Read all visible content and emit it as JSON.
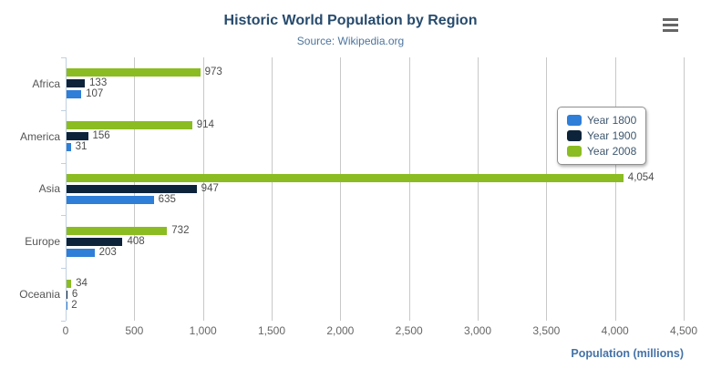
{
  "chart_data": {
    "type": "bar",
    "title": "Historic World Population by Region",
    "subtitle": "Source: Wikipedia.org",
    "categories": [
      "Africa",
      "America",
      "Asia",
      "Europe",
      "Oceania"
    ],
    "series": [
      {
        "name": "Year 1800",
        "color": "#2f7ed8",
        "values": [
          107,
          31,
          635,
          203,
          2
        ]
      },
      {
        "name": "Year 1900",
        "color": "#0d233a",
        "values": [
          133,
          156,
          947,
          408,
          6
        ]
      },
      {
        "name": "Year 2008",
        "color": "#8bbc21",
        "values": [
          973,
          914,
          4054,
          732,
          34
        ]
      }
    ],
    "series_display_order_top_to_bottom": [
      "Year 2008",
      "Year 1900",
      "Year 1800"
    ],
    "xlabel": "Population (millions)",
    "ylabel": "",
    "xlim": [
      0,
      4500
    ],
    "x_tick_interval": 500,
    "x_tick_labels": [
      "0",
      "500",
      "1,000",
      "1,500",
      "2,000",
      "2,500",
      "3,000",
      "3,500",
      "4,000",
      "4,500"
    ],
    "grid": true,
    "data_labels": true,
    "legend_position": "right-top-floating"
  },
  "icons": {
    "context_menu": "hamburger-icon"
  },
  "colors": {
    "title": "#274b6d",
    "subtitle": "#4d759e",
    "axis_title": "#4572a7",
    "axis_line": "#c0d0e0",
    "gridline": "#c8c8c8",
    "tick_label": "#666666",
    "category_label": "#555555",
    "data_label": "#4d4d4d",
    "legend_text": "#3e576f",
    "menu_icon": "#666666",
    "background": "#ffffff"
  }
}
